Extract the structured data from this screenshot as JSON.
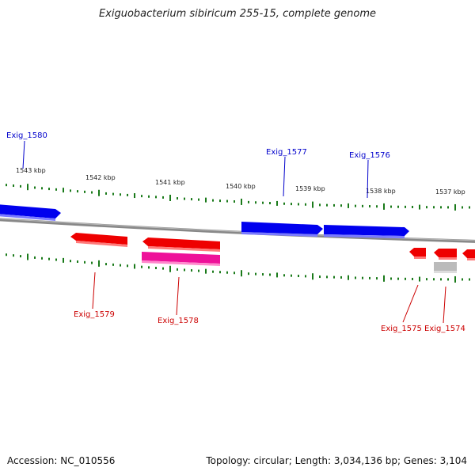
{
  "title": "Exiguobacterium sibiricum 255-15, complete genome",
  "footer": {
    "accession": "Accession: NC_010556",
    "summary": "Topology: circular; Length: 3,034,136 bp; Genes: 3,104"
  },
  "colors": {
    "forward": "#0000ee",
    "reverse": "#ee0000",
    "reverse_alt": "#ee1199",
    "rna": "#bbbbbb",
    "tick": "#1a7a1a",
    "backbone": "#888888"
  },
  "scale_ticks": [
    {
      "label": "1543 kbp"
    },
    {
      "label": "1542 kbp"
    },
    {
      "label": "1541 kbp"
    },
    {
      "label": "1540 kbp"
    },
    {
      "label": "1539 kbp"
    },
    {
      "label": "1538 kbp"
    },
    {
      "label": "1537 kbp"
    }
  ],
  "gene_labels": {
    "g1580": "Exig_1580",
    "g1577": "Exig_1577",
    "g1576": "Exig_1576",
    "g1579": "Exig_1579",
    "g1578": "Exig_1578",
    "g1575": "Exig_1575",
    "g1574": "Exig_1574"
  }
}
